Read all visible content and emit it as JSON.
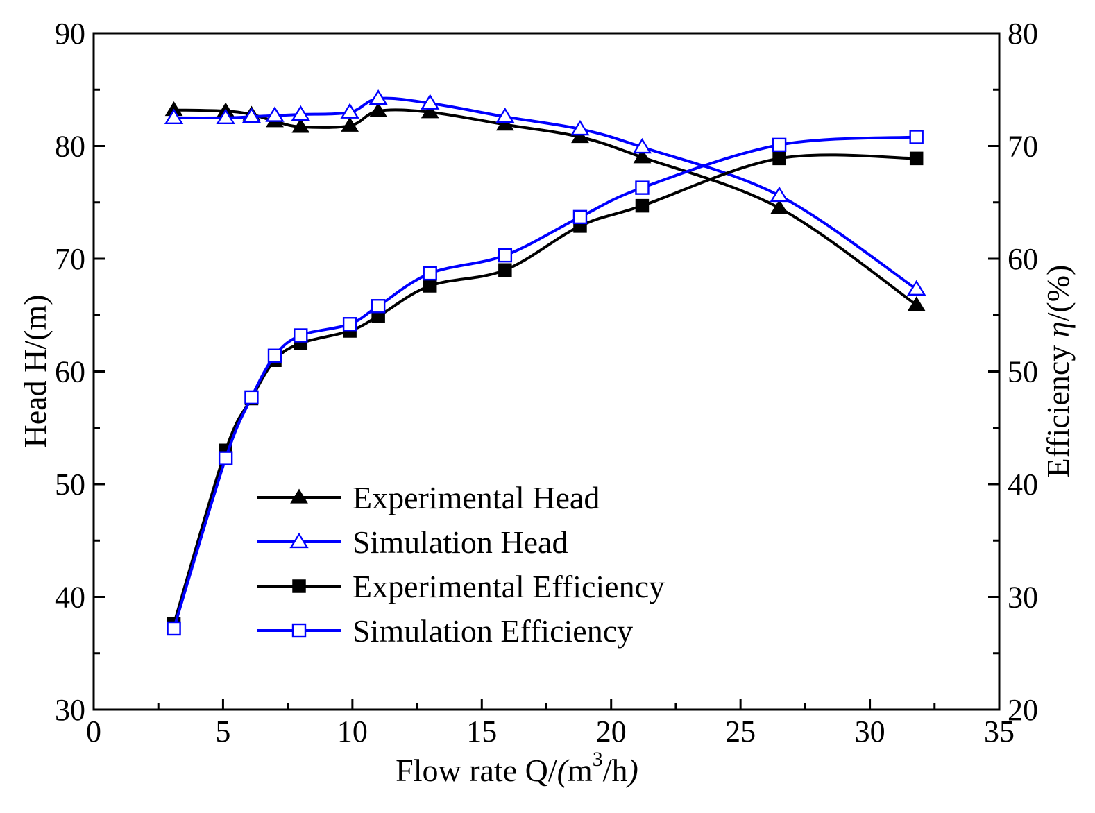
{
  "chart_data": {
    "type": "line",
    "xlabel_parts": {
      "main": "Flow rate  Q/",
      "paren_open": "(",
      "unit": "m",
      "sup": "3",
      "unit_tail": "/h",
      "paren_close": ")"
    },
    "ylabel_left": "Head   H/(m)",
    "ylabel_right_text": "Efficiency",
    "ylabel_right_symbol": "η",
    "ylabel_right_unit": "/(%)",
    "xlim": [
      0,
      35
    ],
    "ylim_left": [
      30,
      90
    ],
    "ylim_right": [
      20,
      80
    ],
    "x_ticks": [
      "0",
      "5",
      "10",
      "15",
      "20",
      "25",
      "30",
      "35"
    ],
    "y_left_ticks": [
      "30",
      "40",
      "50",
      "60",
      "70",
      "80",
      "90"
    ],
    "y_right_ticks": [
      "20",
      "30",
      "40",
      "50",
      "60",
      "70",
      "80"
    ],
    "legend_position": "lower-middle-left",
    "series": [
      {
        "name": "Experimental Head",
        "axis": "left",
        "color": "#000000",
        "marker": "triangle-filled",
        "x": [
          3.1,
          5.1,
          6.1,
          7.0,
          8.0,
          9.9,
          11.0,
          13.0,
          15.9,
          18.8,
          21.2,
          26.5,
          31.8
        ],
        "y": [
          83.2,
          83.1,
          82.8,
          82.2,
          81.7,
          81.8,
          83.1,
          83.0,
          81.9,
          80.8,
          79.0,
          74.5,
          65.9
        ]
      },
      {
        "name": "Simulation Head",
        "axis": "left",
        "color": "#0000ff",
        "marker": "triangle-open",
        "x": [
          3.1,
          5.1,
          6.1,
          7.0,
          8.0,
          9.9,
          11.0,
          13.0,
          15.9,
          18.8,
          21.2,
          26.5,
          31.8
        ],
        "y": [
          82.5,
          82.5,
          82.6,
          82.7,
          82.8,
          83.0,
          84.2,
          83.8,
          82.6,
          81.5,
          79.9,
          75.6,
          67.3
        ]
      },
      {
        "name": "Experimental Efficiency",
        "axis": "right",
        "color": "#000000",
        "marker": "square-filled",
        "x": [
          3.1,
          5.1,
          6.1,
          7.0,
          8.0,
          9.9,
          11.0,
          13.0,
          15.9,
          18.8,
          21.2,
          26.5,
          31.8
        ],
        "y": [
          27.6,
          43.0,
          47.6,
          51.0,
          52.5,
          53.6,
          54.9,
          57.6,
          59.0,
          62.9,
          64.7,
          68.9,
          68.9
        ]
      },
      {
        "name": "Simulation Efficiency",
        "axis": "right",
        "color": "#0000ff",
        "marker": "square-open",
        "x": [
          3.1,
          5.1,
          6.1,
          7.0,
          8.0,
          9.9,
          11.0,
          13.0,
          15.9,
          18.8,
          21.2,
          26.5,
          31.8
        ],
        "y": [
          27.2,
          42.3,
          47.7,
          51.4,
          53.2,
          54.2,
          55.8,
          58.7,
          60.3,
          63.7,
          66.3,
          70.1,
          70.8
        ]
      }
    ]
  }
}
